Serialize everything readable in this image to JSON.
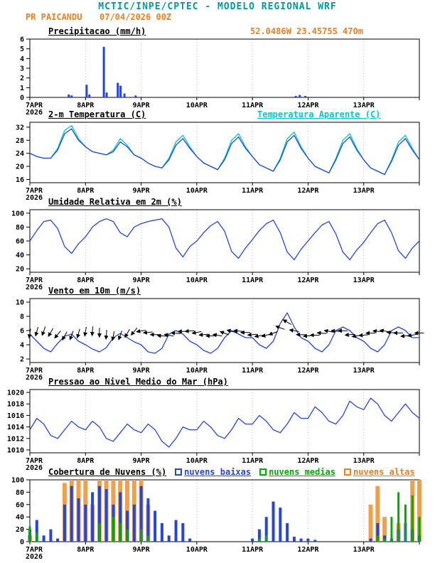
{
  "header": {
    "title": "MCTIC/INPE/CPTEC - MODELO REGIONAL WRF",
    "station": "PR PAICANDU",
    "run": "07/04/2026 00Z",
    "colors": {
      "title": "#009999",
      "accent": "#ee7f1e"
    }
  },
  "x_axis": {
    "tick_labels": [
      "7APR",
      "8APR",
      "9APR",
      "10APR",
      "11APR",
      "12APR",
      "13APR"
    ],
    "year": "2026",
    "range_days": [
      0,
      7
    ]
  },
  "chart_data": [
    {
      "id": "precip",
      "type": "bar",
      "title": "Precipitacao (mm/h)",
      "right_label": "52.0486W 23.4575S 470m",
      "right_label_color": "#ee7f1e",
      "ylim": [
        0,
        6
      ],
      "yticks": [
        0,
        1,
        2,
        3,
        4,
        5,
        6
      ],
      "bar_color": "#2746d6",
      "bars": [
        [
          0.7,
          0.3
        ],
        [
          0.75,
          0.2
        ],
        [
          1.02,
          1.3
        ],
        [
          1.07,
          0.3
        ],
        [
          1.33,
          5.2
        ],
        [
          1.38,
          0.5
        ],
        [
          1.58,
          1.5
        ],
        [
          1.63,
          1.2
        ],
        [
          1.7,
          0.4
        ],
        [
          1.9,
          0.2
        ],
        [
          4.78,
          0.15
        ],
        [
          4.85,
          0.25
        ],
        [
          4.95,
          0.15
        ]
      ]
    },
    {
      "id": "temp",
      "type": "line",
      "title": "2-m Temperatura (C)",
      "right_label": "Temperatura Aparente (C)",
      "right_label_color": "#00c8c8",
      "ylim": [
        15,
        33.5
      ],
      "yticks": [
        16,
        20,
        24,
        28,
        32
      ],
      "x_step_days": 0.125,
      "series": [
        {
          "name": "Temperatura Aparente (C)",
          "color": "#00c8c8",
          "values": [
            24,
            23,
            22.5,
            22.5,
            25.5,
            31,
            32.5,
            28.5,
            26,
            24.5,
            24,
            23.5,
            25,
            28.5,
            26.5,
            23.5,
            22.5,
            21,
            20,
            19.5,
            22.5,
            27.5,
            29.5,
            26,
            23,
            21,
            20,
            19,
            22.5,
            28,
            30,
            26,
            23,
            20.5,
            19.5,
            18.5,
            22.5,
            28.5,
            30.5,
            26,
            22.5,
            20,
            19,
            18,
            22.5,
            28,
            30,
            25.5,
            22,
            19.5,
            18.5,
            17.5,
            22,
            27.5,
            29.5,
            25.5,
            22
          ]
        },
        {
          "name": "2-m Temperatura (C)",
          "color": "#2746d6",
          "values": [
            24,
            23,
            22.5,
            22.5,
            25,
            30,
            31.5,
            28,
            26,
            24.5,
            24,
            23.5,
            24.5,
            27.5,
            26,
            23.5,
            22.5,
            21,
            20,
            19.5,
            22,
            26.5,
            28.5,
            25.5,
            23,
            21,
            20,
            19,
            22,
            27,
            29,
            25.5,
            23,
            20.5,
            19.5,
            18.5,
            22,
            27.5,
            29.5,
            25.5,
            22.5,
            20,
            19,
            18,
            22,
            27,
            29,
            25,
            22,
            19.5,
            18.5,
            17.5,
            21.5,
            26.5,
            28.5,
            25,
            22
          ]
        }
      ]
    },
    {
      "id": "rh",
      "type": "line",
      "title": "Umidade Relativa em 2m (%)",
      "ylim": [
        15,
        105
      ],
      "yticks": [
        20,
        40,
        60,
        80,
        100
      ],
      "x_step_days": 0.125,
      "series": [
        {
          "name": "Umidade Relativa em 2m (%)",
          "color": "#2746d6",
          "values": [
            60,
            75,
            88,
            90,
            78,
            52,
            42,
            56,
            66,
            80,
            88,
            92,
            88,
            72,
            66,
            80,
            85,
            88,
            90,
            92,
            80,
            50,
            37,
            52,
            60,
            72,
            82,
            88,
            74,
            45,
            35,
            50,
            62,
            75,
            85,
            90,
            72,
            44,
            33,
            48,
            60,
            72,
            83,
            88,
            70,
            44,
            33,
            47,
            58,
            72,
            85,
            90,
            72,
            46,
            35,
            50,
            60
          ]
        }
      ]
    },
    {
      "id": "wind",
      "type": "line",
      "title": "Vento em 10m (m/s)",
      "ylim": [
        1.5,
        10.5
      ],
      "yticks": [
        2,
        4,
        6,
        8,
        10
      ],
      "x_step_days": 0.125,
      "series": [
        {
          "name": "Vento em 10m (m/s)",
          "color": "#2746d6",
          "values": [
            5.5,
            4.5,
            3.5,
            3,
            4.2,
            5.2,
            5.5,
            4.5,
            4,
            3.4,
            3,
            3.6,
            5,
            5.6,
            5,
            4.4,
            4,
            3,
            2.8,
            3.5,
            5.5,
            6,
            5.5,
            4.5,
            4,
            3.2,
            2.8,
            3.5,
            5,
            6,
            5.5,
            5,
            5,
            4,
            3.5,
            4.5,
            7,
            8.5,
            6.5,
            5,
            4.5,
            3.5,
            3,
            4,
            6,
            6.5,
            6,
            5,
            4.5,
            3.5,
            3,
            4,
            6,
            6.5,
            6,
            5,
            5
          ]
        }
      ],
      "barbs": {
        "color": "#000000",
        "anchor": 5.6,
        "dirs_deg": [
          100,
          105,
          110,
          120,
          130,
          120,
          110,
          105,
          100,
          95,
          90,
          95,
          100,
          110,
          120,
          130,
          170,
          175,
          180,
          185,
          190,
          185,
          180,
          175,
          170,
          175,
          180,
          190,
          200,
          195,
          185,
          180,
          175,
          170,
          165,
          160,
          200,
          210,
          190,
          180,
          175,
          180,
          185,
          190,
          185,
          180,
          175,
          170,
          175,
          180,
          185,
          190,
          185,
          180,
          175,
          170,
          180
        ]
      }
    },
    {
      "id": "slp",
      "type": "line",
      "title": "Pressao ao Nivel Medio do Mar (hPa)",
      "ylim": [
        1009.5,
        1020.5
      ],
      "yticks": [
        1010,
        1012,
        1014,
        1016,
        1018,
        1020
      ],
      "x_step_days": 0.125,
      "series": [
        {
          "name": "Pressao ao Nivel Medio do Mar (hPa)",
          "color": "#2746d6",
          "values": [
            1013.5,
            1015.5,
            1014.5,
            1012.5,
            1012,
            1013.5,
            1015,
            1014,
            1013.5,
            1015,
            1014,
            1012,
            1011.5,
            1013,
            1014.5,
            1013.5,
            1013,
            1014.5,
            1013.5,
            1011.5,
            1010.5,
            1012,
            1014,
            1013.5,
            1013.5,
            1015,
            1014,
            1012.5,
            1012,
            1013.5,
            1015.5,
            1014.5,
            1014.5,
            1016,
            1015,
            1013.5,
            1013,
            1014.5,
            1016.5,
            1015.5,
            1015.5,
            1017.5,
            1016.5,
            1015,
            1014.5,
            1016,
            1018.5,
            1017.5,
            1017,
            1019,
            1018,
            1016,
            1015,
            1016.5,
            1018,
            1016.5,
            1015.5
          ]
        }
      ]
    },
    {
      "id": "clouds",
      "type": "bar-multi",
      "title": "Cobertura de Nuvens (%)",
      "legend": [
        {
          "label": "nuvens baixas",
          "color": "#2746d6"
        },
        {
          "label": "nuvens medias",
          "color": "#00aa00"
        },
        {
          "label": "nuvens altas",
          "color": "#ee7f1e"
        }
      ],
      "ylim": [
        0,
        100
      ],
      "yticks": [
        0,
        20,
        40,
        60,
        80,
        100
      ],
      "x_step_days": 0.125,
      "series": [
        {
          "name": "nuvens baixas",
          "color": "#2746d6",
          "values": [
            20,
            35,
            10,
            20,
            5,
            60,
            90,
            70,
            60,
            80,
            90,
            85,
            60,
            80,
            50,
            60,
            90,
            70,
            50,
            30,
            10,
            35,
            30,
            5,
            0,
            0,
            0,
            0,
            0,
            0,
            0,
            0,
            5,
            20,
            40,
            65,
            55,
            30,
            8,
            5,
            5,
            3,
            0,
            0,
            0,
            0,
            0,
            0,
            0,
            5,
            30,
            10,
            5,
            20,
            30,
            20,
            10
          ]
        },
        {
          "name": "nuvens medias",
          "color": "#00aa00",
          "values": [
            25,
            15,
            0,
            0,
            0,
            0,
            0,
            0,
            0,
            0,
            30,
            0,
            40,
            30,
            20,
            0,
            20,
            10,
            0,
            0,
            0,
            0,
            0,
            0,
            0,
            0,
            0,
            0,
            0,
            0,
            0,
            0,
            0,
            5,
            10,
            0,
            0,
            0,
            0,
            0,
            0,
            0,
            0,
            0,
            0,
            0,
            0,
            0,
            0,
            0,
            10,
            5,
            40,
            80,
            60,
            75,
            40
          ]
        },
        {
          "name": "nuvens altas",
          "color": "#f0a04c",
          "values": [
            10,
            0,
            0,
            0,
            0,
            95,
            100,
            100,
            100,
            60,
            100,
            100,
            100,
            100,
            100,
            100,
            100,
            60,
            0,
            0,
            0,
            0,
            0,
            0,
            0,
            0,
            0,
            0,
            0,
            0,
            0,
            0,
            0,
            0,
            0,
            0,
            0,
            0,
            0,
            0,
            0,
            0,
            0,
            0,
            0,
            0,
            0,
            0,
            0,
            60,
            90,
            40,
            0,
            30,
            0,
            100,
            100
          ]
        }
      ]
    }
  ]
}
